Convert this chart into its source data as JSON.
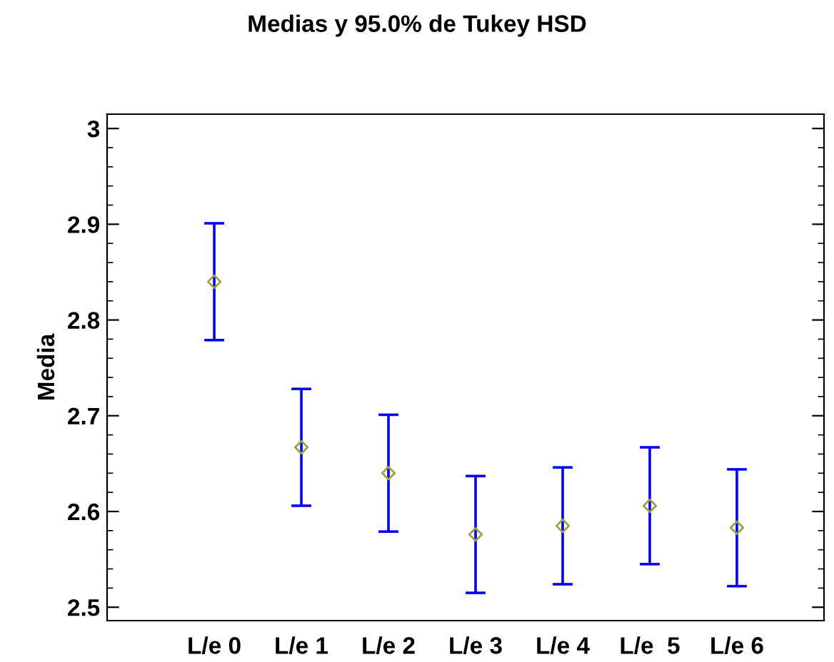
{
  "chart_data": {
    "type": "scatter",
    "title": "Medias y 95.0% de Tukey HSD",
    "ylabel": "Media",
    "categories": [
      "L/e 0",
      "L/e 1",
      "L/e 2",
      "L/e 3",
      "L/e 4",
      "L/e  5",
      "L/e 6"
    ],
    "series": [
      {
        "color": "#0000ff",
        "colors": [
          "#a0a040",
          "#a0a040",
          "#a0a040",
          "#a0a040",
          "#a0a040",
          "#a0a040",
          "#a0a040"
        ],
        "values": [
          2.84,
          2.667,
          2.64,
          2.576,
          2.585,
          2.606,
          2.583
        ],
        "errors": [
          0.061,
          0.061,
          0.061,
          0.061,
          0.061,
          0.061,
          0.061
        ]
      }
    ],
    "marker": "diamond",
    "grid": false,
    "ylim": [
      2.486,
      3.015
    ],
    "yticks": [
      2.5,
      {
        "value": 2.52,
        "label": null
      },
      {
        "value": 2.54,
        "label": null
      },
      {
        "value": 2.56,
        "label": null
      },
      {
        "value": 2.58,
        "label": null
      },
      2.6,
      {
        "value": 2.62,
        "label": null
      },
      {
        "value": 2.64,
        "label": null
      },
      {
        "value": 2.66,
        "label": null
      },
      {
        "value": 2.68,
        "label": null
      },
      2.7,
      {
        "value": 2.72,
        "label": null
      },
      {
        "value": 2.74,
        "label": null
      },
      {
        "value": 2.76,
        "label": null
      },
      {
        "value": 2.78,
        "label": null
      },
      2.8,
      {
        "value": 2.82,
        "label": null
      },
      {
        "value": 2.84,
        "label": null
      },
      {
        "value": 2.86,
        "label": null
      },
      {
        "value": 2.88,
        "label": null
      },
      2.9,
      {
        "value": 2.92,
        "label": null
      },
      {
        "value": 2.94,
        "label": null
      },
      {
        "value": 2.96,
        "label": null
      },
      {
        "value": 2.98,
        "label": null
      },
      3
    ]
  }
}
